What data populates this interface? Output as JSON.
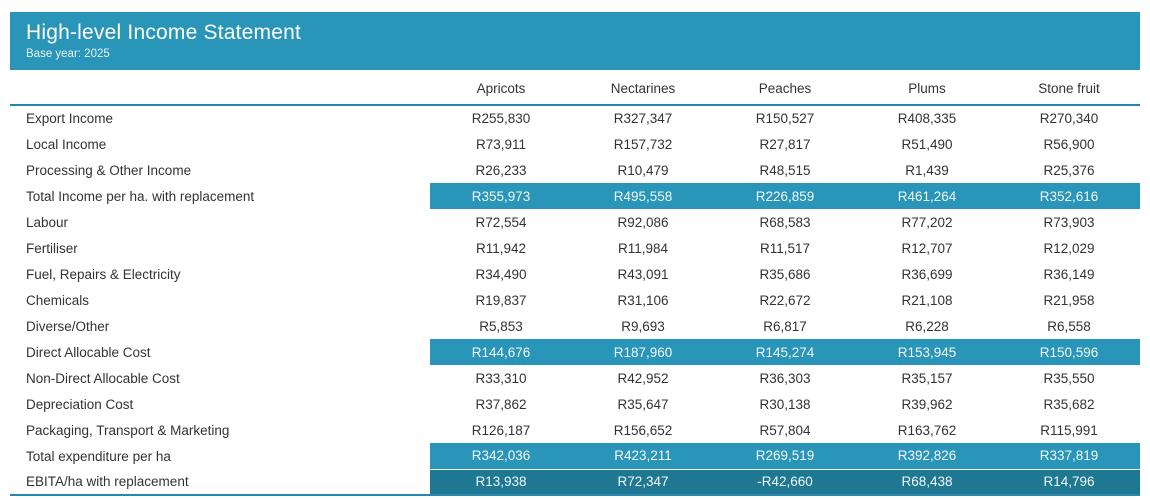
{
  "header": {
    "title": "High-level Income Statement",
    "subtitle": "Base year: 2025"
  },
  "colors": {
    "header_bg": "#2995b8",
    "highlight_bg": "#2995b8",
    "highlight_dark_bg": "#1f7891",
    "rule": "#2787ae",
    "text": "#333333",
    "highlight_text": "#f2f9fb"
  },
  "chart_data": {
    "type": "table",
    "title": "High-level Income Statement",
    "subtitle": "Base year: 2025",
    "columns": [
      "Apricots",
      "Nectarines",
      "Peaches",
      "Plums",
      "Stone fruit"
    ],
    "rows": [
      {
        "label": "Export Income",
        "values": [
          "R255,830",
          "R327,347",
          "R150,527",
          "R408,335",
          "R270,340"
        ],
        "highlight": "none"
      },
      {
        "label": "Local Income",
        "values": [
          "R73,911",
          "R157,732",
          "R27,817",
          "R51,490",
          "R56,900"
        ],
        "highlight": "none"
      },
      {
        "label": "Processing & Other Income",
        "values": [
          "R26,233",
          "R10,479",
          "R48,515",
          "R1,439",
          "R25,376"
        ],
        "highlight": "none"
      },
      {
        "label": "Total Income per ha. with replacement",
        "values": [
          "R355,973",
          "R495,558",
          "R226,859",
          "R461,264",
          "R352,616"
        ],
        "highlight": "light"
      },
      {
        "label": "Labour",
        "values": [
          "R72,554",
          "R92,086",
          "R68,583",
          "R77,202",
          "R73,903"
        ],
        "highlight": "none"
      },
      {
        "label": "Fertiliser",
        "values": [
          "R11,942",
          "R11,984",
          "R11,517",
          "R12,707",
          "R12,029"
        ],
        "highlight": "none"
      },
      {
        "label": "Fuel, Repairs & Electricity",
        "values": [
          "R34,490",
          "R43,091",
          "R35,686",
          "R36,699",
          "R36,149"
        ],
        "highlight": "none"
      },
      {
        "label": "Chemicals",
        "values": [
          "R19,837",
          "R31,106",
          "R22,672",
          "R21,108",
          "R21,958"
        ],
        "highlight": "none"
      },
      {
        "label": "Diverse/Other",
        "values": [
          "R5,853",
          "R9,693",
          "R6,817",
          "R6,228",
          "R6,558"
        ],
        "highlight": "none"
      },
      {
        "label": "Direct Allocable Cost",
        "values": [
          "R144,676",
          "R187,960",
          "R145,274",
          "R153,945",
          "R150,596"
        ],
        "highlight": "light"
      },
      {
        "label": "Non-Direct Allocable Cost",
        "values": [
          "R33,310",
          "R42,952",
          "R36,303",
          "R35,157",
          "R35,550"
        ],
        "highlight": "none"
      },
      {
        "label": "Depreciation Cost",
        "values": [
          "R37,862",
          "R35,647",
          "R30,138",
          "R39,962",
          "R35,682"
        ],
        "highlight": "none"
      },
      {
        "label": "Packaging, Transport & Marketing",
        "values": [
          "R126,187",
          "R156,652",
          "R57,804",
          "R163,762",
          "R115,991"
        ],
        "highlight": "none"
      },
      {
        "label": "Total expenditure per ha",
        "values": [
          "R342,036",
          "R423,211",
          "R269,519",
          "R392,826",
          "R337,819"
        ],
        "highlight": "light"
      },
      {
        "label": "EBITA/ha with replacement",
        "values": [
          "R13,938",
          "R72,347",
          "-R42,660",
          "R68,438",
          "R14,796"
        ],
        "highlight": "dark"
      }
    ]
  }
}
